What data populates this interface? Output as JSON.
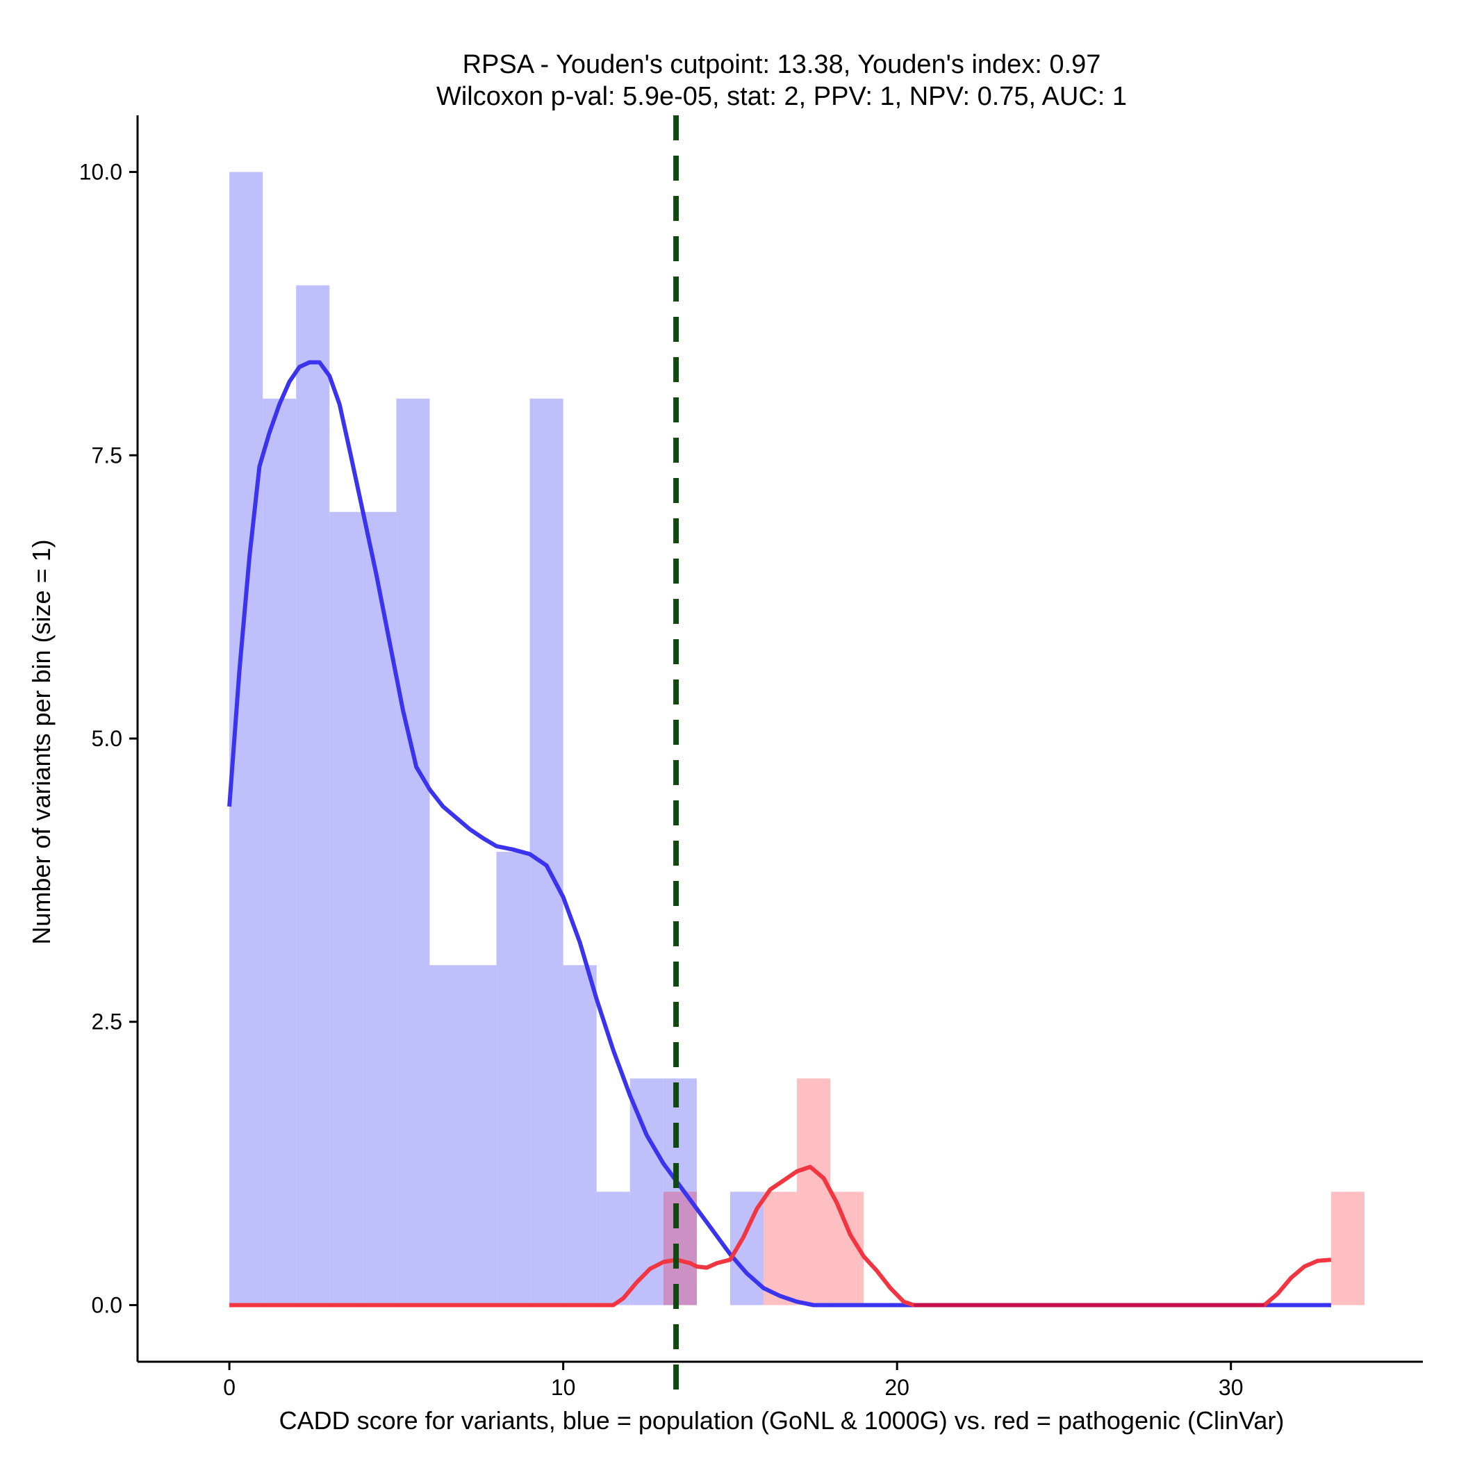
{
  "chart_data": {
    "type": "histogram",
    "title": "RPSA - Youden's cutpoint: 13.38, Youden's index: 0.97",
    "subtitle": "Wilcoxon p-val: 5.9e-05, stat: 2, PPV: 1, NPV: 0.75, AUC: 1",
    "xlabel": "CADD score for variants, blue = population (GoNL & 1000G) vs. red = pathogenic (ClinVar)",
    "ylabel": "Number of variants per bin (size = 1)",
    "xlim": [
      -2.75,
      35.75
    ],
    "ylim": [
      -0.5,
      10.5
    ],
    "x_ticks": [
      0,
      10,
      20,
      30
    ],
    "x_tick_labels": [
      "0",
      "10",
      "20",
      "30"
    ],
    "y_ticks": [
      0,
      2.5,
      5,
      7.5,
      10
    ],
    "y_tick_labels": [
      "0.0",
      "2.5",
      "5.0",
      "7.5",
      "10.0"
    ],
    "bin_width": 1,
    "cutpoint": 13.38,
    "colors": {
      "population_bar": "#bfbffc",
      "pathogenic_bar": "#fdbfc2",
      "overlap_bar": "#cc90c4",
      "population_line": "#3b34ee",
      "pathogenic_line": "#f23641",
      "overlap_line": "#c5114b",
      "cutpoint_line": "#0e4a0d"
    },
    "series": [
      {
        "name": "population (GoNL & 1000G)",
        "bins": [
          {
            "start": 0,
            "count": 10
          },
          {
            "start": 1,
            "count": 8
          },
          {
            "start": 2,
            "count": 9
          },
          {
            "start": 3,
            "count": 7
          },
          {
            "start": 4,
            "count": 7
          },
          {
            "start": 5,
            "count": 8
          },
          {
            "start": 6,
            "count": 3
          },
          {
            "start": 7,
            "count": 3
          },
          {
            "start": 8,
            "count": 4
          },
          {
            "start": 9,
            "count": 8
          },
          {
            "start": 10,
            "count": 3
          },
          {
            "start": 11,
            "count": 1
          },
          {
            "start": 12,
            "count": 2
          },
          {
            "start": 13,
            "count": 2
          },
          {
            "start": 15,
            "count": 1
          }
        ],
        "density_curve": [
          [
            0,
            4.4
          ],
          [
            0.3,
            5.6
          ],
          [
            0.6,
            6.6
          ],
          [
            0.9,
            7.4
          ],
          [
            1.2,
            7.7
          ],
          [
            1.5,
            7.95
          ],
          [
            1.8,
            8.15
          ],
          [
            2.1,
            8.28
          ],
          [
            2.4,
            8.32
          ],
          [
            2.7,
            8.32
          ],
          [
            3.0,
            8.2
          ],
          [
            3.3,
            7.95
          ],
          [
            3.6,
            7.55
          ],
          [
            4.0,
            7.0
          ],
          [
            4.4,
            6.45
          ],
          [
            4.8,
            5.85
          ],
          [
            5.2,
            5.25
          ],
          [
            5.6,
            4.75
          ],
          [
            6.0,
            4.55
          ],
          [
            6.4,
            4.4
          ],
          [
            6.8,
            4.3
          ],
          [
            7.2,
            4.2
          ],
          [
            7.6,
            4.12
          ],
          [
            8.0,
            4.05
          ],
          [
            8.5,
            4.02
          ],
          [
            9.0,
            3.98
          ],
          [
            9.5,
            3.88
          ],
          [
            10.0,
            3.6
          ],
          [
            10.5,
            3.2
          ],
          [
            11.0,
            2.7
          ],
          [
            11.5,
            2.25
          ],
          [
            12.0,
            1.85
          ],
          [
            12.5,
            1.5
          ],
          [
            13.0,
            1.25
          ],
          [
            13.5,
            1.05
          ],
          [
            14.0,
            0.85
          ],
          [
            14.5,
            0.65
          ],
          [
            15.0,
            0.45
          ],
          [
            15.5,
            0.28
          ],
          [
            16.0,
            0.15
          ],
          [
            16.5,
            0.08
          ],
          [
            17.0,
            0.03
          ],
          [
            17.5,
            0.0
          ],
          [
            18.0,
            0.0
          ],
          [
            25.0,
            0.0
          ],
          [
            33.0,
            0.0
          ]
        ]
      },
      {
        "name": "pathogenic (ClinVar)",
        "bins": [
          {
            "start": 13,
            "count": 1
          },
          {
            "start": 16,
            "count": 1
          },
          {
            "start": 17,
            "count": 2
          },
          {
            "start": 18,
            "count": 1
          },
          {
            "start": 33,
            "count": 1
          }
        ],
        "density_curve": [
          [
            0,
            0.0
          ],
          [
            11.5,
            0.0
          ],
          [
            11.8,
            0.06
          ],
          [
            12.2,
            0.2
          ],
          [
            12.6,
            0.32
          ],
          [
            13.0,
            0.38
          ],
          [
            13.4,
            0.4
          ],
          [
            13.8,
            0.37
          ],
          [
            14.0,
            0.34
          ],
          [
            14.3,
            0.33
          ],
          [
            14.6,
            0.37
          ],
          [
            15.0,
            0.4
          ],
          [
            15.4,
            0.6
          ],
          [
            15.8,
            0.85
          ],
          [
            16.2,
            1.02
          ],
          [
            16.6,
            1.1
          ],
          [
            17.0,
            1.18
          ],
          [
            17.4,
            1.22
          ],
          [
            17.8,
            1.12
          ],
          [
            18.2,
            0.9
          ],
          [
            18.6,
            0.62
          ],
          [
            19.0,
            0.43
          ],
          [
            19.4,
            0.3
          ],
          [
            19.8,
            0.15
          ],
          [
            20.2,
            0.03
          ],
          [
            20.5,
            0.0
          ],
          [
            31.0,
            0.0
          ],
          [
            31.4,
            0.1
          ],
          [
            31.8,
            0.24
          ],
          [
            32.2,
            0.34
          ],
          [
            32.6,
            0.39
          ],
          [
            33.0,
            0.4
          ]
        ]
      }
    ]
  }
}
